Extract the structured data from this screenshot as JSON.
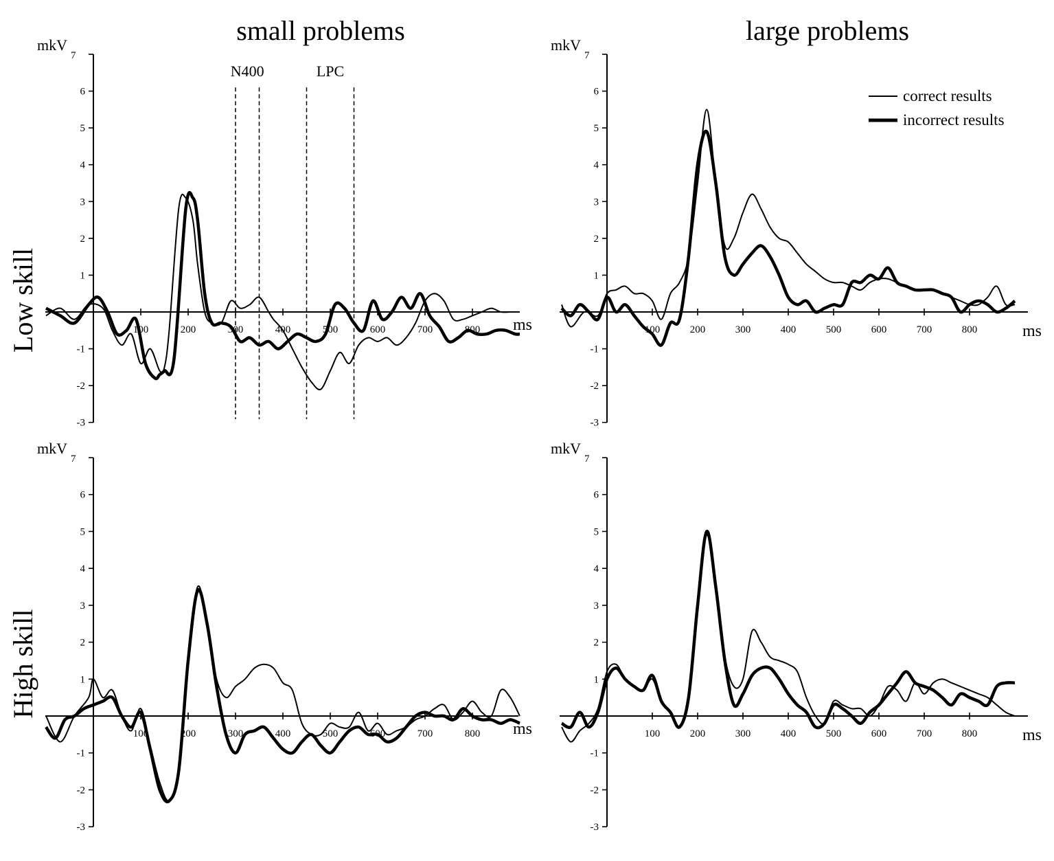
{
  "column_titles": [
    "small problems",
    "large problems"
  ],
  "row_labels": [
    "Low skill",
    "High skill"
  ],
  "legend": {
    "position": "top-right of the large problems / Low skill panel",
    "entries": [
      {
        "label": "correct results",
        "style": "thin"
      },
      {
        "label": "incorrect results",
        "style": "thick"
      }
    ]
  },
  "windows": [
    {
      "label": "N400",
      "from": 300,
      "to": 350
    },
    {
      "label": "LPC",
      "from": 450,
      "to": 550
    }
  ],
  "chart_data": [
    {
      "type": "line",
      "column": "small problems",
      "row": "Low skill",
      "ylabel": "mkV",
      "xlabel": "ms",
      "ylim": [
        -3,
        7
      ],
      "xlim": [
        -100,
        900
      ],
      "yticks": [
        -3,
        -2,
        -1,
        1,
        2,
        3,
        4,
        5,
        6,
        7
      ],
      "xticks": [
        100,
        200,
        300,
        400,
        500,
        600,
        700,
        800
      ],
      "grid": false,
      "windows": [
        "N400",
        "LPC"
      ],
      "series": [
        {
          "name": "correct results",
          "style": "thin",
          "x": [
            -100,
            -70,
            -40,
            -10,
            20,
            40,
            60,
            80,
            100,
            120,
            140,
            150,
            160,
            180,
            195,
            210,
            220,
            235,
            250,
            270,
            290,
            310,
            330,
            350,
            370,
            380,
            400,
            420,
            440,
            460,
            480,
            500,
            520,
            540,
            560,
            580,
            600,
            620,
            640,
            660,
            680,
            700,
            720,
            740,
            760,
            780,
            800,
            820,
            840,
            860,
            880,
            900
          ],
          "y": [
            -0.1,
            0.1,
            -0.2,
            0.2,
            0.1,
            -0.5,
            -0.9,
            -0.6,
            -1.4,
            -1,
            -1.6,
            -1.5,
            -0.5,
            2.8,
            3.1,
            2.5,
            1.3,
            0,
            -0.3,
            -0.3,
            0.3,
            0.1,
            0.2,
            0.4,
            0,
            -0.2,
            -0.5,
            -1,
            -1.5,
            -1.9,
            -2.1,
            -1.6,
            -1.1,
            -1.4,
            -0.9,
            -0.7,
            -0.8,
            -0.7,
            -0.9,
            -0.7,
            -0.3,
            0.3,
            0.5,
            0.3,
            -0.2,
            -0.2,
            -0.1,
            0,
            0.1,
            0,
            0,
            0
          ]
        },
        {
          "name": "incorrect results",
          "style": "thick",
          "x": [
            -100,
            -70,
            -40,
            -10,
            10,
            30,
            50,
            70,
            90,
            110,
            130,
            140,
            150,
            170,
            195,
            210,
            220,
            235,
            250,
            270,
            290,
            310,
            330,
            350,
            370,
            390,
            410,
            430,
            450,
            470,
            490,
            510,
            530,
            550,
            570,
            590,
            610,
            630,
            650,
            670,
            690,
            710,
            730,
            750,
            770,
            790,
            810,
            830,
            850,
            870,
            890,
            900
          ],
          "y": [
            0.1,
            -0.1,
            -0.3,
            0.2,
            0.4,
            0,
            -0.6,
            -0.5,
            -0.2,
            -1.4,
            -1.8,
            -1.7,
            -1.6,
            -1.3,
            2.8,
            3.1,
            2.5,
            0.5,
            -0.3,
            -0.3,
            -0.4,
            -0.8,
            -0.7,
            -0.9,
            -0.8,
            -1,
            -0.8,
            -0.6,
            -0.7,
            -0.8,
            -0.6,
            0.2,
            0.1,
            -0.3,
            -0.5,
            0.3,
            -0.2,
            0,
            0.4,
            0.1,
            0.5,
            -0.1,
            -0.4,
            -0.8,
            -0.7,
            -0.5,
            -0.6,
            -0.6,
            -0.5,
            -0.5,
            -0.6,
            -0.6
          ]
        }
      ]
    },
    {
      "type": "line",
      "column": "large problems",
      "row": "Low skill",
      "ylabel": "mkV",
      "xlabel": "ms",
      "ylim": [
        -3,
        7
      ],
      "xlim": [
        -100,
        900
      ],
      "yticks": [
        -3,
        -2,
        -1,
        1,
        2,
        3,
        4,
        5,
        6,
        7
      ],
      "xticks": [
        100,
        200,
        300,
        400,
        500,
        600,
        700,
        800
      ],
      "grid": false,
      "series": [
        {
          "name": "correct results",
          "style": "thin",
          "x": [
            -100,
            -80,
            -50,
            -20,
            0,
            20,
            40,
            60,
            80,
            100,
            120,
            140,
            160,
            180,
            200,
            220,
            240,
            260,
            280,
            300,
            320,
            340,
            360,
            380,
            400,
            420,
            440,
            460,
            480,
            500,
            520,
            540,
            560,
            580,
            600,
            620,
            640,
            660,
            680,
            700,
            720,
            740,
            760,
            780,
            800,
            820,
            840,
            860,
            880,
            900
          ],
          "y": [
            0.2,
            -0.4,
            0,
            -0.1,
            0.5,
            0.6,
            0.7,
            0.5,
            0.5,
            0.3,
            -0.2,
            0.5,
            0.8,
            1.5,
            3.5,
            5.5,
            3.5,
            1.8,
            2,
            2.7,
            3.2,
            2.8,
            2.3,
            2,
            1.9,
            1.6,
            1.3,
            1.1,
            0.9,
            0.8,
            0.8,
            0.7,
            0.6,
            0.8,
            0.9,
            0.9,
            0.8,
            0.7,
            0.6,
            0.6,
            0.6,
            0.5,
            0.4,
            0.3,
            0.2,
            0.2,
            0.4,
            0.7,
            0.2,
            0.2
          ]
        },
        {
          "name": "incorrect results",
          "style": "thick",
          "x": [
            -100,
            -80,
            -60,
            -40,
            -20,
            0,
            20,
            40,
            60,
            80,
            100,
            120,
            140,
            160,
            180,
            200,
            220,
            240,
            260,
            280,
            300,
            320,
            340,
            360,
            380,
            400,
            420,
            440,
            460,
            480,
            500,
            520,
            540,
            560,
            580,
            600,
            620,
            640,
            660,
            680,
            700,
            720,
            740,
            760,
            780,
            800,
            820,
            840,
            860,
            880,
            900
          ],
          "y": [
            0.1,
            -0.1,
            0.2,
            0,
            -0.2,
            0.4,
            0,
            0.2,
            -0.1,
            -0.4,
            -0.6,
            -0.9,
            -0.3,
            -0.2,
            1.5,
            4,
            4.9,
            3.5,
            1.5,
            1,
            1.3,
            1.6,
            1.8,
            1.5,
            1,
            0.4,
            0.2,
            0.3,
            0,
            0.1,
            0.2,
            0.2,
            0.8,
            0.8,
            1,
            0.9,
            1.2,
            0.8,
            0.7,
            0.6,
            0.6,
            0.6,
            0.5,
            0.4,
            0,
            0.2,
            0.3,
            0.2,
            0,
            0.1,
            0.3
          ]
        }
      ]
    },
    {
      "type": "line",
      "column": "small problems",
      "row": "High skill",
      "ylabel": "mkV",
      "xlabel": "ms",
      "ylim": [
        -3,
        7
      ],
      "xlim": [
        -100,
        900
      ],
      "yticks": [
        -3,
        -2,
        -1,
        1,
        2,
        3,
        4,
        5,
        6,
        7
      ],
      "xticks": [
        100,
        200,
        300,
        400,
        500,
        600,
        700,
        800
      ],
      "grid": false,
      "series": [
        {
          "name": "correct results",
          "style": "thin",
          "x": [
            -100,
            -70,
            -40,
            -10,
            0,
            20,
            40,
            60,
            80,
            100,
            120,
            140,
            160,
            180,
            200,
            220,
            240,
            260,
            280,
            300,
            320,
            340,
            360,
            380,
            400,
            420,
            440,
            460,
            480,
            500,
            520,
            540,
            560,
            580,
            600,
            620,
            640,
            660,
            680,
            700,
            720,
            740,
            760,
            780,
            800,
            820,
            840,
            860,
            880,
            900
          ],
          "y": [
            0,
            -0.7,
            0,
            0.5,
            1,
            0.5,
            0.7,
            0,
            -0.4,
            0.2,
            -0.8,
            -1.8,
            -2.3,
            -1.5,
            1.5,
            3.5,
            2.5,
            1,
            0.5,
            0.8,
            1,
            1.3,
            1.4,
            1.3,
            0.9,
            0.7,
            -0.2,
            -0.5,
            -0.5,
            -0.2,
            -0.3,
            -0.3,
            0.1,
            -0.4,
            -0.2,
            -0.5,
            -0.4,
            -0.3,
            -0.1,
            0,
            0.2,
            0.3,
            -0.1,
            0.1,
            0.4,
            0.1,
            0,
            0.7,
            0.5,
            0
          ]
        },
        {
          "name": "incorrect results",
          "style": "thick",
          "x": [
            -100,
            -80,
            -60,
            -40,
            -20,
            0,
            20,
            40,
            60,
            80,
            100,
            120,
            140,
            160,
            180,
            200,
            220,
            240,
            260,
            280,
            300,
            320,
            340,
            360,
            380,
            400,
            420,
            440,
            460,
            480,
            500,
            520,
            540,
            560,
            580,
            600,
            620,
            640,
            660,
            680,
            700,
            720,
            740,
            760,
            780,
            800,
            820,
            840,
            860,
            880,
            900
          ],
          "y": [
            -0.3,
            -0.6,
            -0.1,
            0,
            0.2,
            0.3,
            0.4,
            0.5,
            0,
            -0.3,
            0.1,
            -0.9,
            -2,
            -2.3,
            -1.5,
            1.5,
            3.4,
            2.5,
            0.8,
            -0.5,
            -1,
            -0.5,
            -0.4,
            -0.3,
            -0.6,
            -0.9,
            -1,
            -0.7,
            -0.5,
            -0.8,
            -1,
            -0.7,
            -0.4,
            -0.3,
            -0.5,
            -0.5,
            -0.7,
            -0.6,
            -0.3,
            0,
            0.1,
            0,
            0,
            -0.1,
            0.2,
            0,
            -0.1,
            -0.1,
            -0.2,
            -0.1,
            -0.2
          ]
        }
      ]
    },
    {
      "type": "line",
      "column": "large problems",
      "row": "High skill",
      "ylabel": "mkV",
      "xlabel": "ms",
      "ylim": [
        -3,
        7
      ],
      "xlim": [
        -100,
        900
      ],
      "yticks": [
        -3,
        -2,
        -1,
        1,
        2,
        3,
        4,
        5,
        6,
        7
      ],
      "xticks": [
        100,
        200,
        300,
        400,
        500,
        600,
        700,
        800
      ],
      "grid": false,
      "series": [
        {
          "name": "correct results",
          "style": "thin",
          "x": [
            -100,
            -80,
            -60,
            -40,
            -20,
            0,
            20,
            40,
            60,
            80,
            100,
            120,
            140,
            160,
            180,
            200,
            220,
            240,
            260,
            280,
            300,
            320,
            340,
            360,
            380,
            400,
            420,
            440,
            460,
            480,
            500,
            520,
            540,
            560,
            580,
            600,
            620,
            640,
            660,
            680,
            700,
            720,
            740,
            760,
            780,
            800,
            820,
            840,
            860,
            880,
            900
          ],
          "y": [
            -0.3,
            -0.7,
            -0.4,
            -0.2,
            0.2,
            1.2,
            1.4,
            1,
            0.8,
            0.7,
            1,
            0.4,
            0.1,
            -0.3,
            0.5,
            3,
            4.9,
            3.5,
            1.6,
            0.8,
            1,
            2.3,
            2,
            1.6,
            1.5,
            1.4,
            1.2,
            0.5,
            0,
            -0.2,
            0.4,
            0.3,
            0.2,
            0.2,
            0,
            0.3,
            0.8,
            0.7,
            0.4,
            0.9,
            0.6,
            0.9,
            1,
            0.9,
            0.8,
            0.7,
            0.6,
            0.5,
            0.3,
            0.1,
            0
          ]
        },
        {
          "name": "incorrect results",
          "style": "thick",
          "x": [
            -100,
            -80,
            -60,
            -40,
            -20,
            0,
            20,
            40,
            60,
            80,
            100,
            120,
            140,
            160,
            180,
            200,
            220,
            240,
            260,
            280,
            300,
            320,
            340,
            360,
            380,
            400,
            420,
            440,
            460,
            480,
            500,
            520,
            540,
            560,
            580,
            600,
            620,
            640,
            660,
            680,
            700,
            720,
            740,
            760,
            780,
            800,
            820,
            840,
            860,
            880,
            900
          ],
          "y": [
            -0.2,
            -0.3,
            0.1,
            -0.3,
            0.1,
            1,
            1.3,
            1,
            0.8,
            0.7,
            1.1,
            0.4,
            0.1,
            -0.3,
            0.5,
            3,
            5,
            3.5,
            1.5,
            0.3,
            0.6,
            1.1,
            1.3,
            1.3,
            1,
            0.6,
            0.3,
            0.1,
            -0.3,
            -0.2,
            0.3,
            0.2,
            0,
            -0.2,
            0.1,
            0.3,
            0.6,
            0.9,
            1.2,
            0.9,
            0.8,
            0.7,
            0.5,
            0.3,
            0.6,
            0.5,
            0.4,
            0.3,
            0.8,
            0.9,
            0.9
          ]
        }
      ]
    }
  ]
}
